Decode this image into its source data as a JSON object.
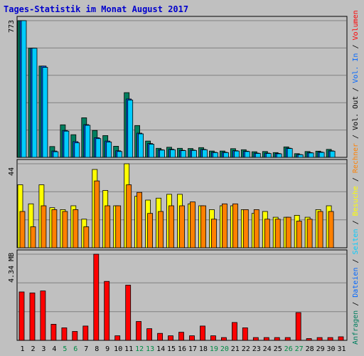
{
  "chart_data": {
    "type": "bar",
    "title": "Tages-Statistik im Monat August 2017",
    "categories": [
      "1",
      "2",
      "3",
      "4",
      "5",
      "6",
      "7",
      "8",
      "9",
      "10",
      "11",
      "12",
      "13",
      "14",
      "15",
      "16",
      "17",
      "18",
      "19",
      "20",
      "21",
      "22",
      "23",
      "24",
      "25",
      "26",
      "27",
      "28",
      "29",
      "30",
      "31"
    ],
    "weekend_days": [
      "5",
      "6",
      "12",
      "13",
      "19",
      "20",
      "26",
      "27"
    ],
    "grid": true,
    "colors": {
      "title": "#0000cc",
      "weekday_label": "#000000",
      "weekend_label": "#008b45",
      "anfragen": "#007f5f",
      "dateien": "#0066ff",
      "seiten": "#00ccff",
      "besuche": "#ffff00",
      "rechner": "#ff8000",
      "kbytes": "#ff0000"
    },
    "panels": [
      {
        "id": "hits",
        "max_label": "773",
        "ylim": [
          0,
          773
        ],
        "series": [
          {
            "key": "anfragen",
            "values": [
              773,
              617,
              516,
              61,
              184,
              128,
              224,
              152,
              123,
              63,
              366,
              180,
              92,
              51,
              57,
              51,
              50,
              55,
              36,
              36,
              49,
              43,
              32,
              33,
              27,
              59,
              21,
              33,
              35,
              45,
              0
            ]
          },
          {
            "key": "dateien",
            "values": [
              773,
              617,
              516,
              36,
              152,
              89,
              185,
              111,
              92,
              37,
              330,
              137,
              78,
              43,
              46,
              40,
              41,
              45,
              29,
              29,
              38,
              35,
              24,
              24,
              22,
              52,
              16,
              27,
              30,
              37,
              0
            ]
          },
          {
            "key": "seiten",
            "values": [
              773,
              617,
              509,
              32,
              148,
              82,
              181,
              106,
              87,
              33,
              324,
              133,
              74,
              41,
              43,
              38,
              39,
              43,
              27,
              27,
              36,
              33,
              22,
              22,
              20,
              50,
              15,
              25,
              28,
              35,
              0
            ]
          }
        ]
      },
      {
        "id": "visits",
        "max_label": "44",
        "ylim": [
          0,
          44
        ],
        "series": [
          {
            "key": "besuche",
            "values": [
              33,
              23,
              33,
              21,
              20,
              22,
              15,
              41,
              30,
              22,
              44,
              27,
              25,
              26,
              28,
              28,
              23,
              22,
              20,
              22,
              22,
              20,
              18,
              19,
              16,
              16,
              17,
              16,
              20,
              22,
              0
            ]
          },
          {
            "key": "rechner",
            "values": [
              19,
              11,
              22,
              20,
              19,
              20,
              11,
              35,
              22,
              22,
              33,
              29,
              18,
              19,
              22,
              22,
              24,
              22,
              15,
              23,
              23,
              20,
              20,
              15,
              15,
              16,
              14,
              15,
              19,
              19,
              0
            ]
          }
        ]
      },
      {
        "id": "volume",
        "max_label": "4.34 MB",
        "ylim": [
          0,
          4.34
        ],
        "series": [
          {
            "key": "kbytes",
            "values": [
              2.44,
              2.39,
              2.49,
              0.81,
              0.63,
              0.45,
              0.72,
              4.34,
              2.97,
              0.23,
              2.78,
              0.95,
              0.59,
              0.35,
              0.23,
              0.41,
              0.23,
              0.72,
              0.23,
              0.14,
              0.9,
              0.63,
              0.14,
              0.14,
              0.14,
              0.14,
              1.4,
              0.09,
              0.14,
              0.14,
              0.18
            ]
          }
        ]
      }
    ],
    "legend_right": [
      {
        "text": "Anfragen",
        "key": "anfragen"
      },
      {
        "text": " / ",
        "key": "sep"
      },
      {
        "text": "Dateien",
        "key": "dateien"
      },
      {
        "text": " / ",
        "key": "sep"
      },
      {
        "text": "Seiten",
        "key": "seiten"
      },
      {
        "text": " / ",
        "key": "sep"
      },
      {
        "text": "Besuche",
        "key": "besuche"
      },
      {
        "text": " / ",
        "key": "sep"
      },
      {
        "text": "Rechner",
        "key": "rechner"
      },
      {
        "text": " / ",
        "key": "sep"
      },
      {
        "text": "Vol. Out",
        "key": "sep"
      },
      {
        "text": " / ",
        "key": "sep"
      },
      {
        "text": "Vol. In",
        "key": "dateien"
      },
      {
        "text": " / ",
        "key": "sep"
      },
      {
        "text": "Volumen",
        "key": "kbytes"
      }
    ]
  }
}
